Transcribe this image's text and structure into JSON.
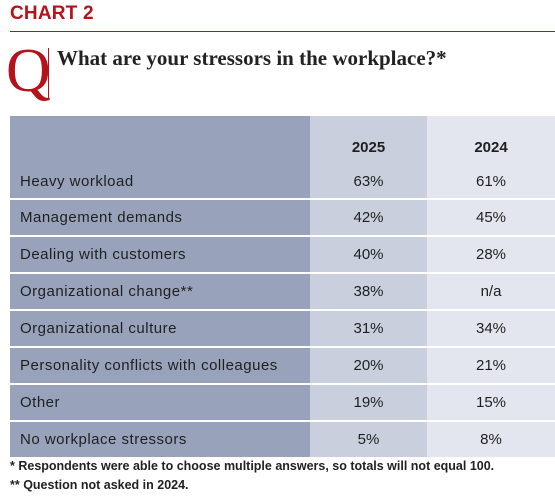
{
  "header": {
    "chart_label": "CHART 2",
    "q_letter": "Q",
    "question": "What are your stressors in the workplace?*"
  },
  "colors": {
    "accent": "#b5121b",
    "label_col": "#98a3bb",
    "col_2025": "#c9cfdd",
    "col_2024": "#e3e6ee"
  },
  "chart_data": {
    "type": "table",
    "columns": [
      "2025",
      "2024"
    ],
    "rows": [
      {
        "label": "Heavy workload",
        "values": [
          "63%",
          "61%"
        ]
      },
      {
        "label": "Management demands",
        "values": [
          "42%",
          "45%"
        ]
      },
      {
        "label": "Dealing with customers",
        "values": [
          "40%",
          "28%"
        ]
      },
      {
        "label": "Organizational change**",
        "values": [
          "38%",
          "n/a"
        ]
      },
      {
        "label": "Organizational culture",
        "values": [
          "31%",
          "34%"
        ]
      },
      {
        "label": "Personality conflicts with colleagues",
        "values": [
          "20%",
          "21%"
        ]
      },
      {
        "label": "Other",
        "values": [
          "19%",
          "15%"
        ]
      },
      {
        "label": "No workplace stressors",
        "values": [
          "5%",
          "8%"
        ]
      }
    ]
  },
  "footnotes": [
    "* Respondents were able to choose multiple answers, so totals will not equal 100.",
    "** Question not asked in 2024."
  ]
}
